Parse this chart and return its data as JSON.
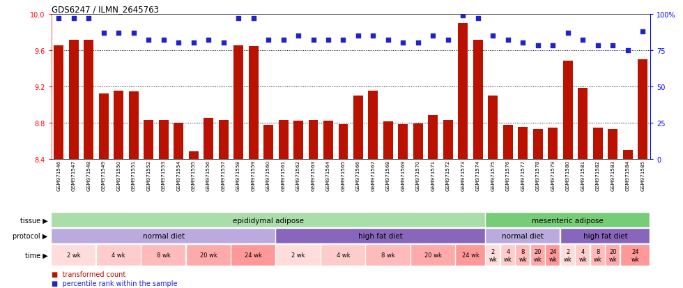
{
  "title": "GDS6247 / ILMN_2645763",
  "samples": [
    "GSM971546",
    "GSM971547",
    "GSM971548",
    "GSM971549",
    "GSM971550",
    "GSM971551",
    "GSM971552",
    "GSM971553",
    "GSM971554",
    "GSM971555",
    "GSM971556",
    "GSM971557",
    "GSM971558",
    "GSM971559",
    "GSM971560",
    "GSM971561",
    "GSM971562",
    "GSM971563",
    "GSM971564",
    "GSM971565",
    "GSM971566",
    "GSM971567",
    "GSM971568",
    "GSM971569",
    "GSM971570",
    "GSM971571",
    "GSM971572",
    "GSM971573",
    "GSM971574",
    "GSM971575",
    "GSM971576",
    "GSM971577",
    "GSM971578",
    "GSM971579",
    "GSM971580",
    "GSM971581",
    "GSM971582",
    "GSM971583",
    "GSM971584",
    "GSM971585"
  ],
  "bar_values": [
    9.65,
    9.71,
    9.71,
    9.12,
    9.15,
    9.14,
    8.83,
    8.83,
    8.8,
    8.48,
    8.85,
    8.83,
    9.65,
    9.64,
    8.77,
    8.83,
    8.82,
    8.83,
    8.82,
    8.78,
    9.1,
    9.15,
    8.81,
    8.78,
    8.79,
    8.88,
    8.83,
    9.9,
    9.71,
    9.1,
    8.77,
    8.75,
    8.73,
    8.74,
    9.48,
    9.18,
    8.74,
    8.73,
    8.5,
    9.5
  ],
  "dot_values": [
    97,
    97,
    97,
    87,
    87,
    87,
    82,
    82,
    80,
    80,
    82,
    80,
    97,
    97,
    82,
    82,
    85,
    82,
    82,
    82,
    85,
    85,
    82,
    80,
    80,
    85,
    82,
    99,
    97,
    85,
    82,
    80,
    78,
    78,
    87,
    82,
    78,
    78,
    75,
    88
  ],
  "ylim_left": [
    8.4,
    10.0
  ],
  "ylim_right": [
    0,
    100
  ],
  "yticks_left": [
    8.4,
    8.8,
    9.2,
    9.6,
    10.0
  ],
  "yticks_right": [
    0,
    25,
    50,
    75,
    100
  ],
  "ytick_labels_right": [
    "0",
    "25",
    "50",
    "75",
    "100%"
  ],
  "hlines": [
    8.8,
    9.2,
    9.6
  ],
  "bar_color": "#bb1100",
  "dot_color": "#2222cc",
  "bg_color": "#ffffff",
  "tissue_row": {
    "groups": [
      {
        "text": "epididymal adipose",
        "start": 0,
        "end": 29,
        "color": "#aaddaa"
      },
      {
        "text": "mesenteric adipose",
        "start": 29,
        "end": 40,
        "color": "#77cc77"
      }
    ]
  },
  "protocol_row": {
    "groups": [
      {
        "text": "normal diet",
        "start": 0,
        "end": 15,
        "color": "#bbaadd"
      },
      {
        "text": "high fat diet",
        "start": 15,
        "end": 29,
        "color": "#8866bb"
      },
      {
        "text": "normal diet",
        "start": 29,
        "end": 34,
        "color": "#bbaadd"
      },
      {
        "text": "high fat diet",
        "start": 34,
        "end": 40,
        "color": "#8866bb"
      }
    ]
  },
  "time_row": {
    "groups": [
      {
        "text": "2 wk",
        "start": 0,
        "end": 3,
        "color": "#ffdddd"
      },
      {
        "text": "4 wk",
        "start": 3,
        "end": 6,
        "color": "#ffcccc"
      },
      {
        "text": "8 wk",
        "start": 6,
        "end": 9,
        "color": "#ffbbbb"
      },
      {
        "text": "20 wk",
        "start": 9,
        "end": 12,
        "color": "#ffaaaa"
      },
      {
        "text": "24 wk",
        "start": 12,
        "end": 15,
        "color": "#ff9999"
      },
      {
        "text": "2 wk",
        "start": 15,
        "end": 18,
        "color": "#ffdddd"
      },
      {
        "text": "4 wk",
        "start": 18,
        "end": 21,
        "color": "#ffcccc"
      },
      {
        "text": "8 wk",
        "start": 21,
        "end": 24,
        "color": "#ffbbbb"
      },
      {
        "text": "20 wk",
        "start": 24,
        "end": 27,
        "color": "#ffaaaa"
      },
      {
        "text": "24 wk",
        "start": 27,
        "end": 29,
        "color": "#ff9999"
      },
      {
        "text": "2\nwk",
        "start": 29,
        "end": 30,
        "color": "#ffdddd"
      },
      {
        "text": "4\nwk",
        "start": 30,
        "end": 31,
        "color": "#ffcccc"
      },
      {
        "text": "8\nwk",
        "start": 31,
        "end": 32,
        "color": "#ffbbbb"
      },
      {
        "text": "20\nwk",
        "start": 32,
        "end": 33,
        "color": "#ffaaaa"
      },
      {
        "text": "24\nwk",
        "start": 33,
        "end": 34,
        "color": "#ff9999"
      },
      {
        "text": "2\nwk",
        "start": 34,
        "end": 35,
        "color": "#ffdddd"
      },
      {
        "text": "4\nwk",
        "start": 35,
        "end": 36,
        "color": "#ffcccc"
      },
      {
        "text": "8\nwk",
        "start": 36,
        "end": 37,
        "color": "#ffbbbb"
      },
      {
        "text": "20\nwk",
        "start": 37,
        "end": 38,
        "color": "#ffaaaa"
      },
      {
        "text": "24\nwk",
        "start": 38,
        "end": 40,
        "color": "#ff9999"
      }
    ]
  }
}
